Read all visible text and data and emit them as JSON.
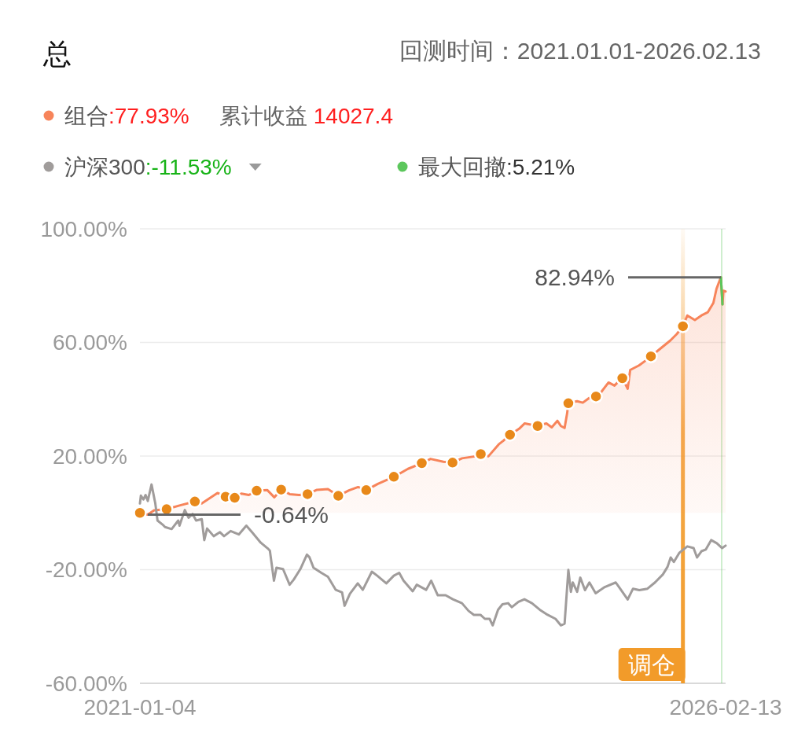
{
  "chart_data": {
    "type": "line",
    "title": "总",
    "subtitle": "回测时间：2021.01.01-2026.02.13",
    "legend": "top left",
    "grid": "y",
    "xlim": [
      "2021-01-04",
      "2026-02-13"
    ],
    "xticks": [
      "2021-01-04",
      "2026-02-13"
    ],
    "ylim": [
      -60,
      100
    ],
    "yticks": [
      {
        "value": -60,
        "label": "-60.00%"
      },
      {
        "value": -20,
        "label": "-20.00%"
      },
      {
        "value": 20,
        "label": "20.00%"
      },
      {
        "value": 60,
        "label": "60.00%"
      },
      {
        "value": 100,
        "label": "100.00%"
      }
    ],
    "series": [
      {
        "name": "组合",
        "type": "area",
        "color": "#f7845a",
        "x": [
          "2021-01-04",
          "2021-01-29",
          "2021-02-18",
          "2021-03-30",
          "2021-05-10",
          "2021-06-28",
          "2021-07-20",
          "2021-09-08",
          "2021-10-04",
          "2021-11-02",
          "2021-11-23",
          "2021-12-17",
          "2022-01-11",
          "2022-02-14",
          "2022-03-08",
          "2022-03-30",
          "2022-04-26",
          "2022-05-26",
          "2022-06-22",
          "2022-07-22",
          "2022-08-26",
          "2022-09-28",
          "2022-11-01",
          "2022-11-30",
          "2022-12-26",
          "2023-02-01",
          "2023-03-24",
          "2023-05-08",
          "2023-06-21",
          "2023-07-19",
          "2023-08-29",
          "2023-09-27",
          "2023-10-27",
          "2023-12-08",
          "2023-12-26",
          "2024-01-19",
          "2024-02-21",
          "2024-03-08",
          "2024-03-28",
          "2024-04-26",
          "2024-05-14",
          "2024-06-24",
          "2024-07-22",
          "2024-08-08",
          "2024-08-26",
          "2024-09-06",
          "2024-09-18",
          "2024-09-26",
          "2024-09-30",
          "2024-10-28",
          "2024-11-15",
          "2024-12-05",
          "2024-12-27",
          "2025-01-09",
          "2025-02-05",
          "2025-02-24",
          "2025-03-10",
          "2025-03-21",
          "2025-04-07",
          "2025-04-15",
          "2025-05-13",
          "2025-06-03",
          "2025-06-20",
          "2025-07-22",
          "2025-08-21",
          "2025-09-10",
          "2025-09-30",
          "2025-10-14",
          "2025-11-07",
          "2025-11-28",
          "2025-12-18",
          "2026-01-05",
          "2026-01-15",
          "2026-01-29",
          "2026-02-03",
          "2026-02-06",
          "2026-02-13"
        ],
        "values": [
          0.0,
          -0.64,
          0.9,
          1.3,
          2.6,
          4.0,
          3.3,
          7.0,
          5.7,
          5.3,
          6.8,
          6.3,
          7.8,
          8.0,
          5.5,
          8.2,
          6.6,
          6.3,
          6.6,
          8.1,
          8.4,
          6.0,
          7.9,
          9.1,
          8.0,
          10.2,
          12.7,
          15.5,
          17.5,
          19.0,
          18.0,
          17.7,
          19.2,
          19.9,
          20.7,
          19.9,
          24.1,
          25.5,
          27.5,
          29.6,
          31.5,
          30.6,
          31.5,
          30.1,
          32.4,
          30.6,
          29.9,
          35.0,
          38.6,
          39.3,
          38.8,
          40.4,
          41.0,
          42.0,
          45.9,
          44.8,
          46.4,
          47.4,
          43.7,
          50.3,
          51.9,
          53.6,
          55.1,
          58.0,
          60.7,
          62.9,
          65.7,
          69.5,
          67.9,
          69.5,
          70.6,
          73.9,
          78.9,
          82.94,
          73.4,
          78.2,
          77.93
        ]
      },
      {
        "name": "沪深300",
        "color": "#a09c9b",
        "x": [
          "2021-01-04",
          "2021-01-07",
          "2021-01-15",
          "2021-01-22",
          "2021-01-29",
          "2021-02-10",
          "2021-02-22",
          "2021-03-01",
          "2021-03-17",
          "2021-03-25",
          "2021-04-15",
          "2021-05-06",
          "2021-05-10",
          "2021-05-27",
          "2021-06-08",
          "2021-06-21",
          "2021-07-02",
          "2021-07-20",
          "2021-07-28",
          "2021-08-06",
          "2021-08-27",
          "2021-09-16",
          "2021-09-29",
          "2021-10-20",
          "2021-11-15",
          "2021-12-09",
          "2021-12-27",
          "2022-01-24",
          "2022-02-14",
          "2022-02-22",
          "2022-03-07",
          "2022-03-15",
          "2022-04-05",
          "2022-04-26",
          "2022-05-09",
          "2022-05-30",
          "2022-06-20",
          "2022-06-28",
          "2022-07-11",
          "2022-08-05",
          "2022-08-26",
          "2022-09-20",
          "2022-10-10",
          "2022-10-18",
          "2022-11-04",
          "2022-11-29",
          "2022-12-15",
          "2023-01-13",
          "2023-01-30",
          "2023-02-28",
          "2023-03-24",
          "2023-04-10",
          "2023-04-24",
          "2023-05-23",
          "2023-06-05",
          "2023-07-05",
          "2023-07-21",
          "2023-08-11",
          "2023-09-05",
          "2023-09-28",
          "2023-10-27",
          "2023-11-17",
          "2023-12-04",
          "2023-12-25",
          "2024-01-08",
          "2024-01-23",
          "2024-02-02",
          "2024-02-19",
          "2024-03-04",
          "2024-03-22",
          "2024-04-03",
          "2024-04-24",
          "2024-05-13",
          "2024-06-06",
          "2024-07-01",
          "2024-07-26",
          "2024-08-20",
          "2024-09-06",
          "2024-09-18",
          "2024-09-30",
          "2024-10-08",
          "2024-10-14",
          "2024-10-28",
          "2024-11-07",
          "2024-11-22",
          "2024-12-06",
          "2024-12-26",
          "2025-01-24",
          "2025-02-28",
          "2025-03-14",
          "2025-04-07",
          "2025-04-24",
          "2025-05-14",
          "2025-06-09",
          "2025-07-03",
          "2025-07-28",
          "2025-08-12",
          "2025-08-22",
          "2025-09-01",
          "2025-09-19",
          "2025-10-14",
          "2025-11-03",
          "2025-11-14",
          "2025-11-28",
          "2025-12-12",
          "2025-12-29",
          "2026-01-16",
          "2026-02-02",
          "2026-02-13"
        ],
        "values": [
          3.3,
          6.1,
          4.7,
          6.3,
          4.2,
          10.0,
          3.3,
          -2.7,
          -4.1,
          -5.0,
          -5.7,
          -2.7,
          -4.5,
          1.0,
          -1.7,
          -0.4,
          -2.7,
          -2.2,
          -9.6,
          -5.5,
          -8.2,
          -6.8,
          -8.2,
          -6.4,
          -7.6,
          -4.5,
          -6.8,
          -10.5,
          -12.4,
          -13.3,
          -23.9,
          -19.3,
          -19.8,
          -25.3,
          -23.5,
          -19.8,
          -14.7,
          -15.6,
          -19.3,
          -21.1,
          -22.5,
          -27.1,
          -28.0,
          -32.7,
          -28.5,
          -24.8,
          -27.1,
          -20.7,
          -22.1,
          -24.8,
          -22.1,
          -21.1,
          -23.9,
          -27.6,
          -25.3,
          -27.1,
          -23.9,
          -29.0,
          -29.0,
          -30.4,
          -31.8,
          -34.5,
          -35.9,
          -35.9,
          -37.3,
          -37.3,
          -39.6,
          -34.1,
          -32.2,
          -31.8,
          -33.2,
          -31.3,
          -30.4,
          -31.8,
          -34.1,
          -35.9,
          -37.3,
          -39.6,
          -39.0,
          -20.1,
          -27.8,
          -24.5,
          -27.8,
          -22.8,
          -27.2,
          -24.5,
          -28.3,
          -26.1,
          -24.5,
          -26.7,
          -30.5,
          -26.7,
          -27.2,
          -26.7,
          -24.5,
          -21.7,
          -19.0,
          -15.7,
          -17.3,
          -14.0,
          -11.8,
          -12.4,
          -15.7,
          -13.5,
          -12.9,
          -9.6,
          -10.7,
          -12.4,
          -11.53
        ]
      },
      {
        "name": "最大回撤",
        "color": "#5cc75c",
        "x": [
          "2026-01-29",
          "2026-02-03"
        ],
        "values": [
          82.94,
          73.4
        ]
      },
      {
        "type": "scatter",
        "color": "#e8891a",
        "marker": "circle",
        "x": [
          "2021-01-04",
          "2021-03-30",
          "2021-06-28",
          "2021-10-04",
          "2021-11-02",
          "2022-01-11",
          "2022-03-30",
          "2022-06-22",
          "2022-09-28",
          "2022-12-26",
          "2023-03-24",
          "2023-06-21",
          "2023-09-27",
          "2023-12-26",
          "2024-03-28",
          "2024-06-24",
          "2024-09-30",
          "2024-12-27",
          "2025-03-21",
          "2025-06-20",
          "2025-09-30"
        ],
        "values": [
          0.0,
          1.3,
          4.0,
          5.7,
          5.3,
          7.8,
          8.2,
          6.6,
          6.0,
          8.0,
          12.7,
          17.5,
          17.7,
          20.7,
          27.5,
          30.6,
          38.6,
          41.0,
          47.4,
          55.1,
          65.7
        ]
      }
    ],
    "ref_lines": [
      {
        "axis": "x",
        "value": "2025-09-30",
        "label": "调仓",
        "color": "#f29b2a"
      }
    ],
    "bands": [
      {
        "axis": "x",
        "from": "2026-01-29",
        "to": "2026-02-03",
        "color": "#5cc75c"
      }
    ],
    "annotations": [
      ":77.93%",
      "累计收益",
      "14027.4",
      ":-11.53%",
      ":5.21%",
      "82.94%",
      "-0.64%"
    ]
  }
}
